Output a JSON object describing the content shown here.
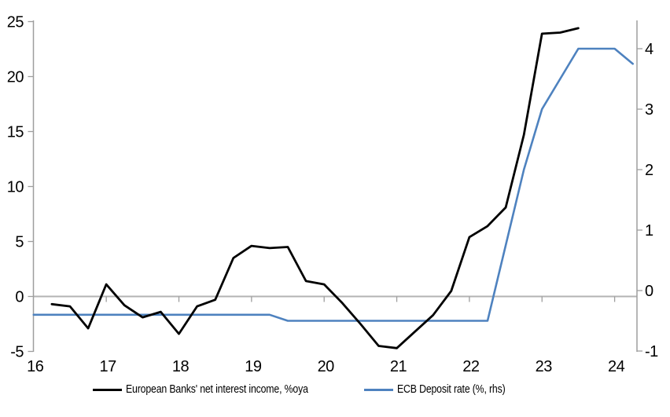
{
  "chart_data": {
    "type": "line",
    "title": "",
    "x_axis": {
      "tick_labels": [
        "16",
        "17",
        "18",
        "19",
        "20",
        "21",
        "22",
        "23",
        "24"
      ],
      "tick_values": [
        16,
        17,
        18,
        19,
        20,
        21,
        22,
        23,
        24
      ],
      "range": [
        16,
        24.3
      ]
    },
    "left_axis": {
      "tick_values": [
        -5,
        0,
        5,
        10,
        15,
        20,
        25
      ],
      "range": [
        -5.0,
        25.1
      ]
    },
    "right_axis": {
      "tick_values": [
        -1,
        0,
        1,
        2,
        3,
        4
      ],
      "range": [
        -1.0,
        4.5
      ]
    },
    "grid": "single horizontal line at left-axis zero",
    "legend_position": "bottom",
    "series": [
      {
        "name": "European Banks' net interest income, %oya",
        "type": "line",
        "axis": "left",
        "color": "#000000",
        "x": [
          16.25,
          16.5,
          16.75,
          17.0,
          17.25,
          17.5,
          17.75,
          18.0,
          18.25,
          18.5,
          18.75,
          19.0,
          19.25,
          19.5,
          19.75,
          20.0,
          20.25,
          20.5,
          20.75,
          21.0,
          21.25,
          21.5,
          21.75,
          22.0,
          22.25,
          22.5,
          22.75,
          23.0,
          23.25,
          23.5
        ],
        "y": [
          -0.7,
          -0.9,
          -2.9,
          1.1,
          -0.8,
          -1.9,
          -1.4,
          -3.4,
          -0.9,
          -0.3,
          3.5,
          4.6,
          4.4,
          4.5,
          1.4,
          1.1,
          -0.6,
          -2.5,
          -4.5,
          -4.7,
          -3.2,
          -1.7,
          0.5,
          5.4,
          6.4,
          8.1,
          14.7,
          23.9,
          24.0,
          24.4
        ]
      },
      {
        "name": "ECB Deposit rate (%, rhs)",
        "type": "line",
        "axis": "right",
        "color": "#4e82bf",
        "x": [
          16.0,
          19.25,
          19.5,
          22.25,
          22.5,
          22.75,
          23.0,
          23.25,
          23.5,
          23.75,
          24.0,
          24.25
        ],
        "y": [
          -0.4,
          -0.4,
          -0.5,
          -0.5,
          0.75,
          2.0,
          3.0,
          3.5,
          4.0,
          4.0,
          4.0,
          3.75
        ]
      }
    ]
  },
  "colors": {
    "background": "#ffffff",
    "axis": "#9e9e9e",
    "gridline": "#b3b3b3",
    "text": "#000000",
    "series_black": "#000000",
    "series_blue": "#4e82bf"
  }
}
